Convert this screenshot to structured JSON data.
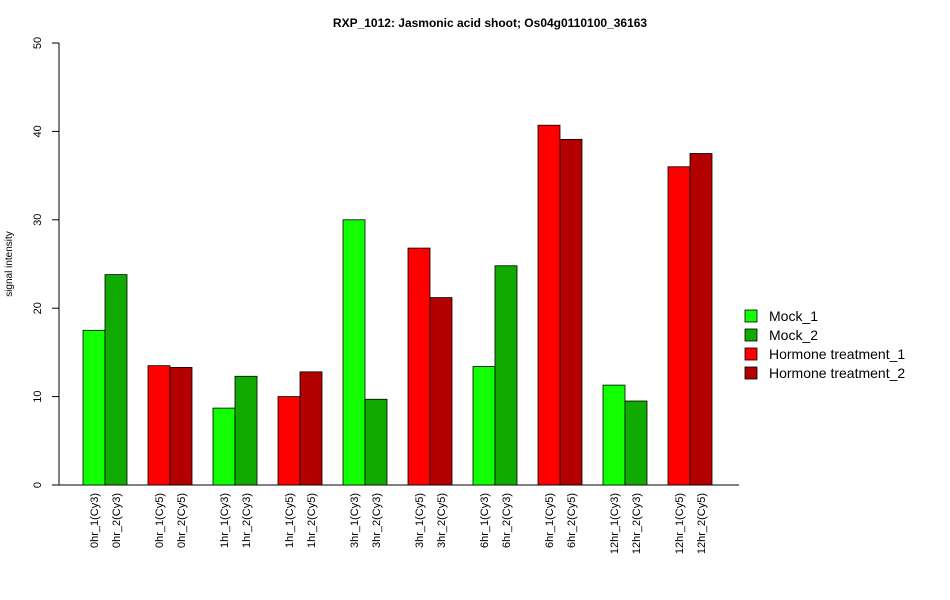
{
  "chart_data": {
    "type": "bar",
    "title": "RXP_1012: Jasmonic acid shoot; Os04g0110100_36163",
    "xlabel": "",
    "ylabel": "signal intensity",
    "ylim": [
      0,
      50
    ],
    "yticks": [
      0,
      10,
      20,
      30,
      40,
      50
    ],
    "grid": false,
    "legend_position": "right",
    "categories": [
      "0hr_1(Cy3)",
      "0hr_2(Cy3)",
      "0hr_1(Cy5)",
      "0hr_2(Cy5)",
      "1hr_1(Cy3)",
      "1hr_2(Cy3)",
      "1hr_1(Cy5)",
      "1hr_2(Cy5)",
      "3hr_1(Cy3)",
      "3hr_2(Cy3)",
      "3hr_1(Cy5)",
      "3hr_2(Cy5)",
      "6hr_1(Cy3)",
      "6hr_2(Cy3)",
      "6hr_1(Cy5)",
      "6hr_2(Cy5)",
      "12hr_1(Cy3)",
      "12hr_2(Cy3)",
      "12hr_1(Cy5)",
      "12hr_2(Cy5)"
    ],
    "values": [
      17.5,
      23.8,
      13.5,
      13.3,
      8.7,
      12.3,
      10.0,
      12.8,
      30.0,
      9.7,
      26.8,
      21.2,
      13.4,
      24.8,
      40.7,
      39.1,
      11.3,
      9.5,
      36.0,
      37.5
    ],
    "series_index": [
      0,
      1,
      2,
      3,
      0,
      1,
      2,
      3,
      0,
      1,
      2,
      3,
      0,
      1,
      2,
      3,
      0,
      1,
      2,
      3
    ],
    "legend": [
      {
        "name": "Mock_1",
        "color": "#11ff00"
      },
      {
        "name": "Mock_2",
        "color": "#11aa00"
      },
      {
        "name": "Hormone treatment_1",
        "color": "#ff0000"
      },
      {
        "name": "Hormone treatment_2",
        "color": "#b30000"
      }
    ]
  }
}
